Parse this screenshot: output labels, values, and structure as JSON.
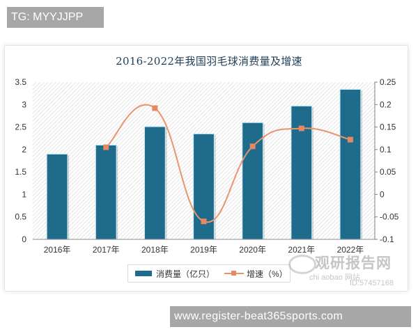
{
  "overlay": {
    "top_tag": "TG: MYYJJPP",
    "bottom_tag": "www.register-beat365sports.com"
  },
  "watermark": {
    "name": "观研报告网",
    "subtitle": "chi   aobao  网站",
    "id": "ID:57457168"
  },
  "colors": {
    "bar": "#1e6b8c",
    "bar_outline": "#cfeef7",
    "line": "#e9946c",
    "marker": "#e38a63",
    "title": "#1f3d55",
    "hatch": "#d8d8d8"
  },
  "chart_data": {
    "type": "bar",
    "title": "2016-2022年我国羽毛球消费量及增速",
    "categories": [
      "2016年",
      "2017年",
      "2018年",
      "2019年",
      "2020年",
      "2021年",
      "2022年"
    ],
    "series": [
      {
        "name": "消费量（亿只）",
        "type": "bar",
        "axis": "left",
        "values": [
          1.9,
          2.1,
          2.51,
          2.35,
          2.6,
          2.97,
          3.34
        ]
      },
      {
        "name": "增速（%）",
        "type": "line",
        "axis": "right",
        "values": [
          null,
          0.105,
          0.192,
          -0.06,
          0.107,
          0.147,
          0.122
        ]
      }
    ],
    "xlabel": "",
    "ylabel": "",
    "ylim": [
      0,
      3.5
    ],
    "y_ticks": [
      "0",
      "0.5",
      "1",
      "1.5",
      "2",
      "2.5",
      "3",
      "3.5"
    ],
    "y2lim": [
      -0.1,
      0.25
    ],
    "y2_ticks": [
      "-0.1",
      "-0.05",
      "0",
      "0.05",
      "0.1",
      "0.15",
      "0.2",
      "0.25"
    ],
    "grid": false,
    "background": "diagonal hatch",
    "legend_position": "bottom",
    "legend": [
      "消费量（亿只）",
      "增速（%）"
    ]
  }
}
